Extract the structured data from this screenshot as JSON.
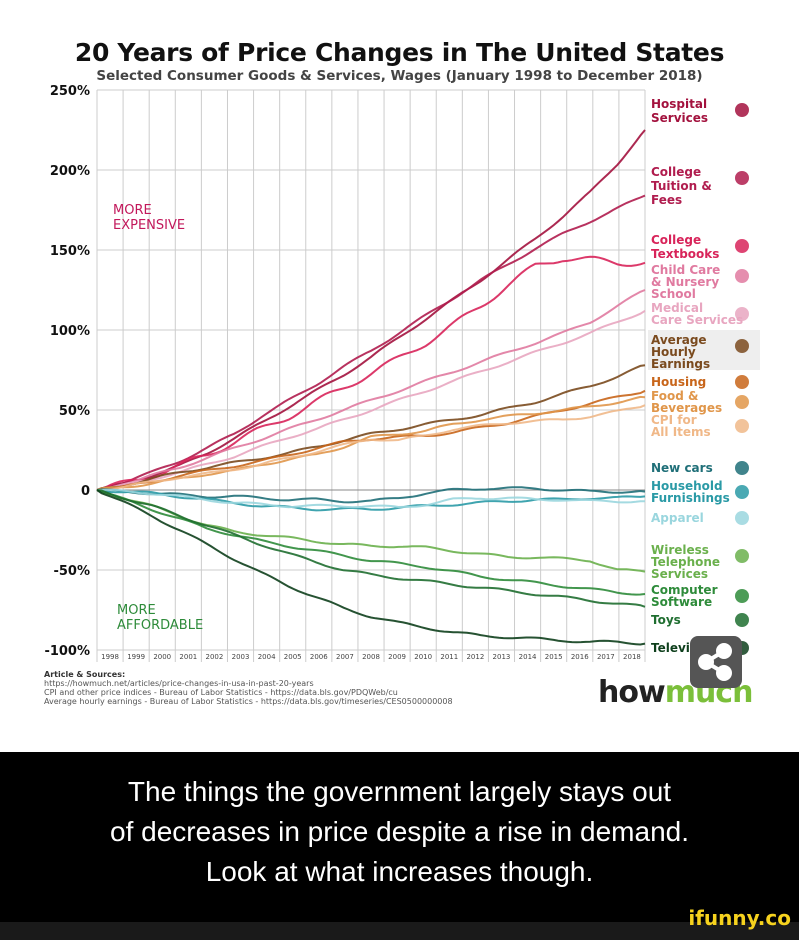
{
  "chart_data": {
    "type": "line",
    "title": "20 Years of Price Changes in The United States",
    "subtitle": "Selected Consumer Goods & Services, Wages (January 1998 to December 2018)",
    "x": [
      1998,
      1999,
      2000,
      2001,
      2002,
      2003,
      2004,
      2005,
      2006,
      2007,
      2008,
      2009,
      2010,
      2011,
      2012,
      2013,
      2014,
      2015,
      2016,
      2017,
      2018
    ],
    "xtick_labels": [
      "1998",
      "1999",
      "2000",
      "2001",
      "2002",
      "2003",
      "2004",
      "2005",
      "2006",
      "2007",
      "2008",
      "2009",
      "2010",
      "2011",
      "2012",
      "2013",
      "2014",
      "2015",
      "2016",
      "2017",
      "2018"
    ],
    "ytick_labels": [
      "250%",
      "200%",
      "150%",
      "100%",
      "50%",
      "0",
      "-50%",
      "-100%"
    ],
    "yticks": [
      250,
      200,
      150,
      100,
      50,
      0,
      -50,
      -100
    ],
    "ylim": [
      -100,
      250
    ],
    "grid": true,
    "annotations": {
      "more_expensive": "MORE EXPENSIVE",
      "more_affordable": "MORE AFFORDABLE"
    },
    "series": [
      {
        "name": "Hospital Services",
        "color": "#a3123e",
        "icon": "hospital-icon",
        "values": [
          0,
          4,
          9,
          15,
          23,
          32,
          42,
          52,
          62,
          72,
          83,
          95,
          107,
          119,
          131,
          144,
          157,
          171,
          186,
          204,
          225
        ]
      },
      {
        "name": "College Tuition & Fees",
        "color": "#b01c4e",
        "icon": "graduation-cap-icon",
        "values": [
          0,
          5,
          11,
          18,
          26,
          35,
          46,
          56,
          66,
          77,
          87,
          98,
          109,
          120,
          131,
          141,
          151,
          160,
          168,
          176,
          184
        ]
      },
      {
        "name": "College Textbooks",
        "color": "#d8245a",
        "icon": "books-icon",
        "values": [
          0,
          4,
          9,
          15,
          22,
          30,
          38,
          46,
          55,
          64,
          73,
          82,
          92,
          103,
          115,
          128,
          140,
          145,
          144,
          142,
          142
        ]
      },
      {
        "name": "Child Care & Nursery School",
        "color": "#e07aa0",
        "icon": "family-icon",
        "values": [
          0,
          4,
          9,
          14,
          20,
          26,
          32,
          38,
          44,
          50,
          56,
          62,
          68,
          74,
          80,
          86,
          92,
          98,
          105,
          115,
          125
        ]
      },
      {
        "name": "Medical Care Services",
        "color": "#e8a6c0",
        "icon": "medical-hand-icon",
        "values": [
          0,
          3,
          7,
          11,
          16,
          21,
          27,
          33,
          38,
          44,
          50,
          56,
          62,
          68,
          74,
          80,
          86,
          92,
          98,
          105,
          112
        ]
      },
      {
        "name": "Average Hourly Earnings",
        "color": "#7a4a1e",
        "icon": "clock-dollar-icon",
        "values": [
          0,
          3,
          7,
          11,
          14,
          17,
          20,
          23,
          27,
          31,
          35,
          38,
          41,
          44,
          47,
          51,
          55,
          60,
          65,
          71,
          78
        ]
      },
      {
        "name": "Housing",
        "color": "#c8651a",
        "icon": "house-icon",
        "values": [
          0,
          2,
          5,
          9,
          12,
          15,
          18,
          22,
          26,
          30,
          32,
          33,
          34,
          36,
          39,
          42,
          46,
          50,
          54,
          58,
          62
        ]
      },
      {
        "name": "Food & Beverages",
        "color": "#e0964a",
        "icon": "food-icon",
        "values": [
          0,
          2,
          4,
          7,
          10,
          12,
          16,
          19,
          22,
          27,
          33,
          35,
          37,
          41,
          44,
          46,
          48,
          50,
          52,
          55,
          58
        ]
      },
      {
        "name": "CPI for All Items",
        "color": "#f0b888",
        "icon": "price-tag-icon",
        "values": [
          0,
          2,
          5,
          8,
          10,
          13,
          16,
          20,
          24,
          28,
          32,
          31,
          34,
          38,
          40,
          42,
          43,
          44,
          46,
          49,
          53
        ]
      },
      {
        "name": "New cars",
        "color": "#1f6f78",
        "icon": "car-icon",
        "values": [
          0,
          -1,
          -2,
          -3,
          -4,
          -4,
          -5,
          -6,
          -6,
          -7,
          -7,
          -5,
          -2,
          0,
          1,
          1,
          1,
          0,
          -1,
          -1,
          -1
        ]
      },
      {
        "name": "Household Furnishings",
        "color": "#2a9aa6",
        "icon": "furnished-house-icon",
        "values": [
          0,
          -1,
          -2,
          -4,
          -6,
          -8,
          -10,
          -11,
          -12,
          -12,
          -12,
          -11,
          -10,
          -9,
          -8,
          -7,
          -6,
          -6,
          -5,
          -5,
          -4
        ]
      },
      {
        "name": "Apparel",
        "color": "#9ad6de",
        "icon": "clothes-icon",
        "values": [
          0,
          -1,
          -2,
          -4,
          -6,
          -8,
          -9,
          -10,
          -10,
          -10,
          -10,
          -11,
          -9,
          -6,
          -5,
          -5,
          -6,
          -6,
          -7,
          -7,
          -7
        ]
      },
      {
        "name": "Wireless Telephone Services",
        "color": "#6ab04c",
        "icon": "phone-icon",
        "values": [
          0,
          -5,
          -10,
          -16,
          -22,
          -26,
          -28,
          -30,
          -32,
          -34,
          -35,
          -35,
          -36,
          -38,
          -40,
          -42,
          -42,
          -43,
          -44,
          -50,
          -51
        ]
      },
      {
        "name": "Computer Software",
        "color": "#2e8b3a",
        "icon": "laptop-icon",
        "values": [
          0,
          -6,
          -12,
          -18,
          -24,
          -28,
          -32,
          -35,
          -38,
          -41,
          -44,
          -46,
          -48,
          -51,
          -54,
          -56,
          -58,
          -60,
          -62,
          -64,
          -65
        ]
      },
      {
        "name": "Toys",
        "color": "#1f6e30",
        "icon": "toys-icon",
        "values": [
          0,
          -5,
          -10,
          -16,
          -22,
          -28,
          -34,
          -40,
          -45,
          -50,
          -53,
          -55,
          -57,
          -59,
          -61,
          -63,
          -65,
          -67,
          -69,
          -71,
          -73
        ]
      },
      {
        "name": "Televisions",
        "color": "#0e3f1c",
        "icon": "tv-icon",
        "values": [
          0,
          -8,
          -16,
          -25,
          -34,
          -43,
          -52,
          -60,
          -67,
          -74,
          -79,
          -83,
          -86,
          -89,
          -91,
          -92,
          -93,
          -94,
          -95,
          -95,
          -96
        ]
      }
    ]
  },
  "sources": {
    "heading": "Article & Sources:",
    "lines": [
      "https://howmuch.net/articles/price-changes-in-usa-in-past-20-years",
      "CPI and other price indices - Bureau of Labor Statistics - https://data.bls.gov/PDQWeb/cu",
      "Average hourly earnings - Bureau of Labor Statistics - https://data.bls.gov/timeseries/CES0500000008"
    ]
  },
  "logo": {
    "a": "how",
    "b": "much"
  },
  "share_icon": "share-icon",
  "caption": {
    "lines": [
      "The things the government largely stays out",
      "of decreases in price despite a rise in demand.",
      "Look at what increases though."
    ]
  },
  "watermark": "ifunny.co"
}
